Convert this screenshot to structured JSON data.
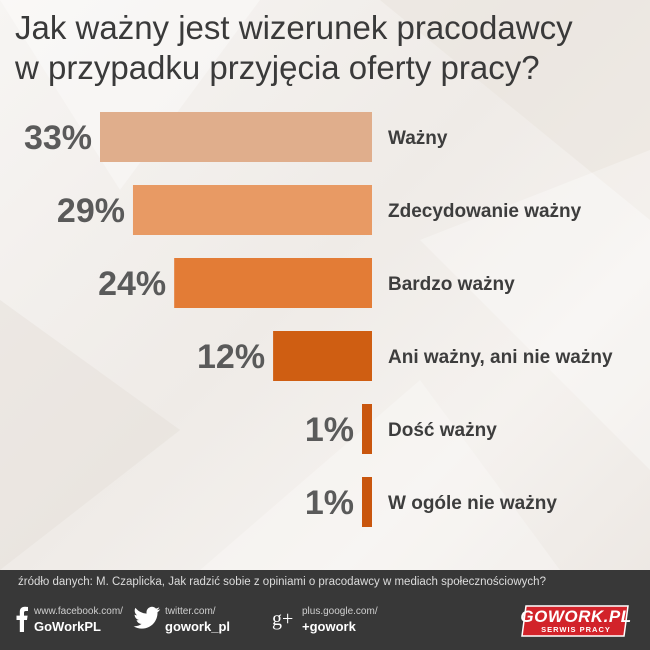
{
  "chart_data": {
    "type": "bar",
    "orientation": "horizontal",
    "title": "Jak ważny jest wizerunek pracodawcy w przypadku przyjęcia oferty pracy?",
    "title_lines": [
      "Jak ważny jest wizerunek pracodawcy",
      "w przypadku przyjęcia oferty pracy?"
    ],
    "categories": [
      "Ważny",
      "Zdecydowanie ważny",
      "Bardzo ważny",
      "Ani ważny, ani nie ważny",
      "Dość ważny",
      "W ogóle nie ważny"
    ],
    "values": [
      33,
      29,
      24,
      12,
      1,
      1
    ],
    "value_labels": [
      "33%",
      "29%",
      "24%",
      "12%",
      "1%",
      "1%"
    ],
    "unit": "%",
    "xlim": [
      0,
      33
    ],
    "colors": [
      "#e0ae8c",
      "#e89a64",
      "#e37c36",
      "#cf5e12",
      "#c9560e",
      "#c9560e"
    ],
    "grid": false,
    "legend": "none"
  },
  "footer": {
    "source": "źródło danych: M. Czaplicka, Jak radzić sobie z opiniami o pracodawcy w mediach społecznościowych?",
    "facebook": {
      "icon": "facebook-icon",
      "url": "www.facebook.com/",
      "handle": "GoWorkPL"
    },
    "twitter": {
      "icon": "twitter-icon",
      "url": "twitter.com/",
      "handle": "gowork_pl"
    },
    "google": {
      "icon": "google-plus-icon",
      "glyph": "g+",
      "url": "plus.google.com/",
      "handle": "+gowork"
    },
    "logo": {
      "text": "GOWORK.PL",
      "subtext": "SERWIS PRACY",
      "color": "#d2232a"
    }
  }
}
